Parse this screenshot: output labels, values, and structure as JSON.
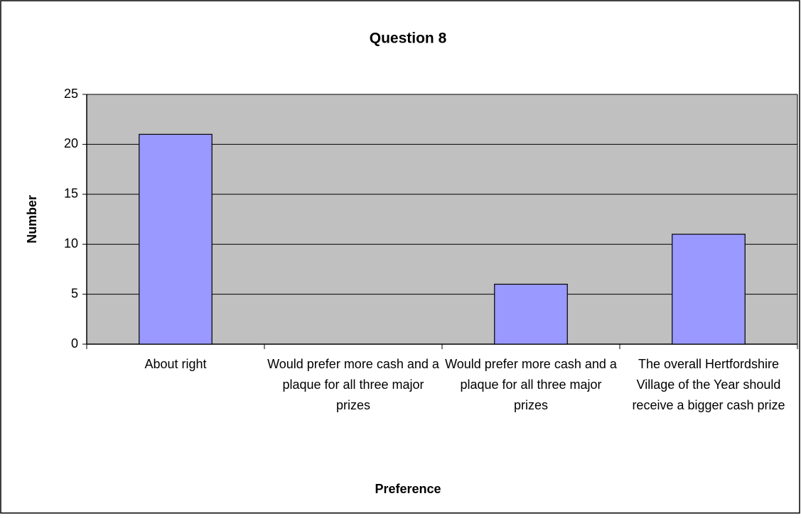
{
  "chart_data": {
    "type": "bar",
    "title": "Question 8",
    "x_label": "Preference",
    "y_label": "Number",
    "categories": [
      "About right",
      "Would prefer more cash and a plaque for all three major prizes",
      "Would prefer more cash and a plaque for all three major prizes",
      "The overall Hertfordshire Village of the Year should receive a bigger cash prize"
    ],
    "values": [
      21,
      0,
      6,
      11
    ],
    "color": "#9999ff",
    "ylim": [
      0,
      25
    ],
    "yticks": [
      0,
      5,
      10,
      15,
      20,
      25
    ],
    "grid": true
  }
}
